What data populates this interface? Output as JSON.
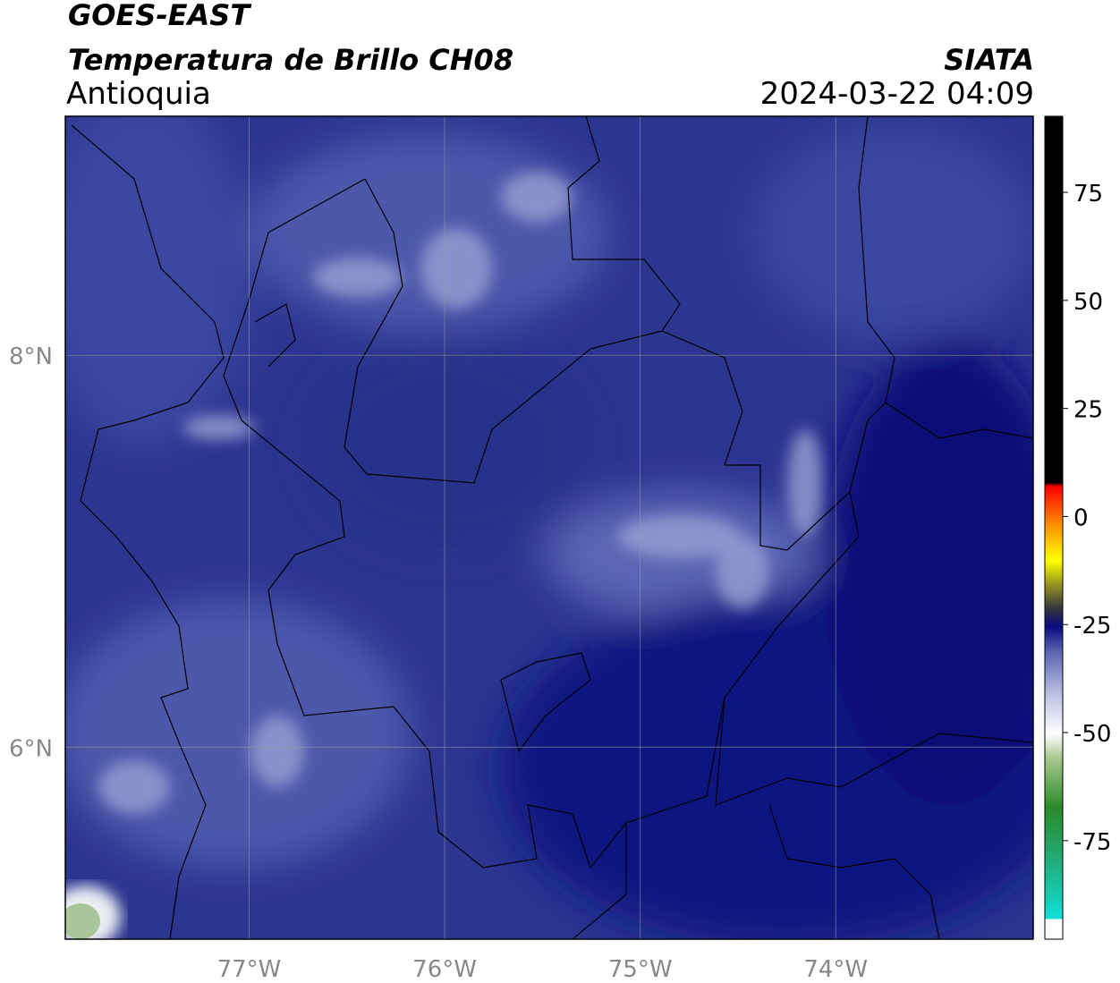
{
  "header": {
    "title": "GOES-EAST",
    "subtitle": "Temperatura de Brillo CH08",
    "region": "Antioquia",
    "source": "SIATA",
    "datetime": "2024-03-22 04:09"
  },
  "map": {
    "xlim": [
      -77.94,
      -72.99
    ],
    "ylim": [
      5.02,
      9.22
    ],
    "xticks": [
      {
        "value": -77,
        "label": "77°W"
      },
      {
        "value": -76,
        "label": "76°W"
      },
      {
        "value": -75,
        "label": "75°W"
      },
      {
        "value": -74,
        "label": "74°W"
      }
    ],
    "yticks": [
      {
        "value": 6,
        "label": "6°N"
      },
      {
        "value": 8,
        "label": "8°N"
      }
    ]
  },
  "colorbar": {
    "lim": [
      -97.8,
      92.6
    ],
    "ticks": [
      -75,
      -50,
      -25,
      0,
      25,
      50,
      75
    ]
  }
}
